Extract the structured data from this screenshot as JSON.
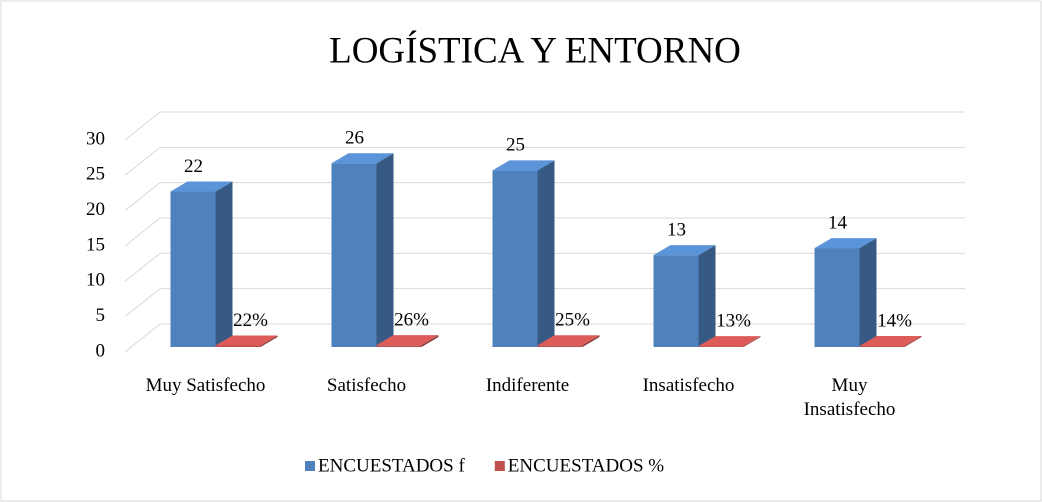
{
  "chart_data": {
    "type": "bar3d",
    "title": "LOGÍSTICA Y ENTORNO",
    "categories": [
      "Muy Satisfecho",
      "Satisfecho",
      "Indiferente",
      "Insatisfecho",
      "Muy Insatisfecho"
    ],
    "series": [
      {
        "name": "ENCUESTADOS f",
        "color": "#4f81bd",
        "values": [
          22,
          26,
          25,
          13,
          14
        ]
      },
      {
        "name": "ENCUESTADOS %",
        "color": "#c0504d",
        "values": [
          0.22,
          0.26,
          0.25,
          0.13,
          0.14
        ],
        "value_labels": [
          "22%",
          "26%",
          "25%",
          "13%",
          "14%"
        ]
      }
    ],
    "ylim": [
      0,
      30
    ],
    "yticks": [
      0,
      5,
      10,
      15,
      20,
      25,
      30
    ],
    "grid": true,
    "legend": "bottom"
  }
}
